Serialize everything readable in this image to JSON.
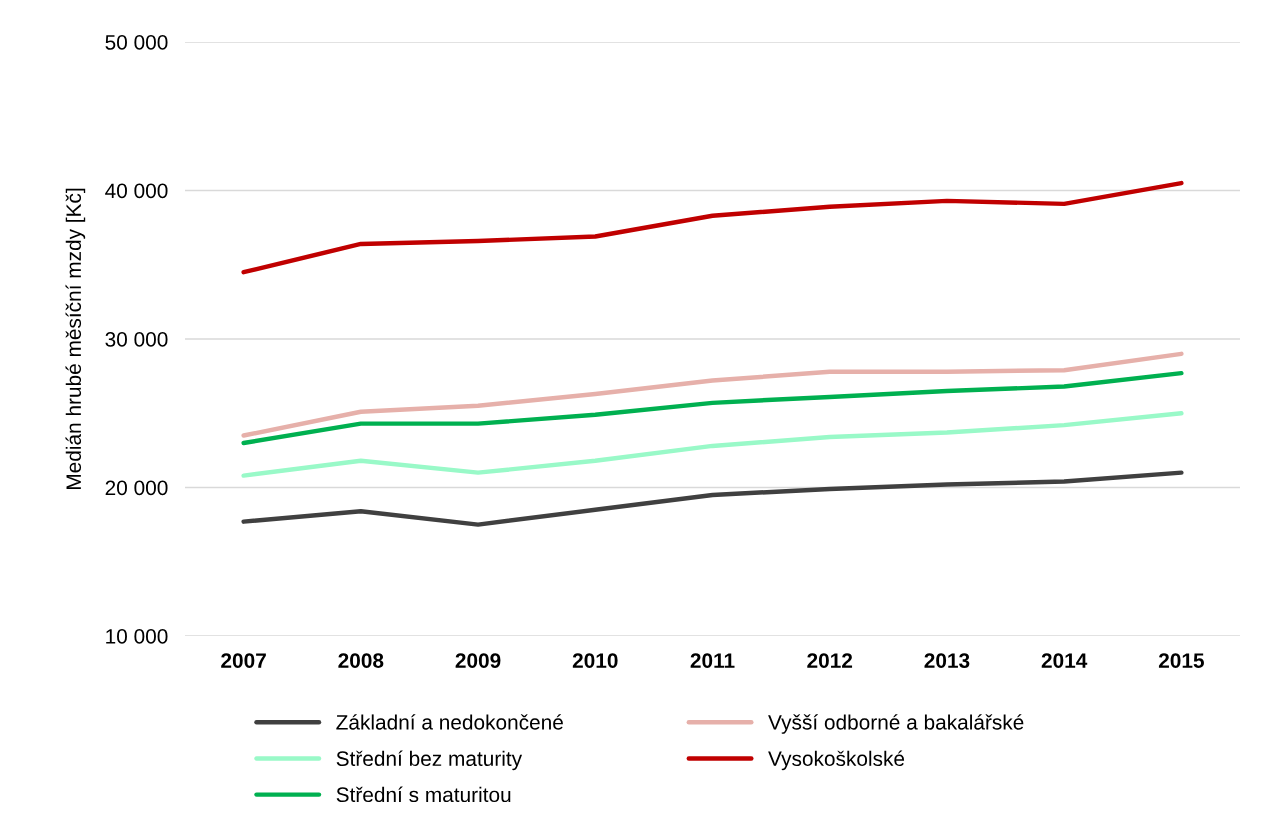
{
  "chart_data": {
    "type": "line",
    "ylabel": "Medián hrubé měsíční mzdy [Kč]",
    "categories": [
      "2007",
      "2008",
      "2009",
      "2010",
      "2011",
      "2012",
      "2013",
      "2014",
      "2015"
    ],
    "series": [
      {
        "name": "Základní a nedokončené",
        "color": "#404040",
        "values": [
          17700,
          18400,
          17500,
          18500,
          19500,
          19900,
          20200,
          20400,
          21000
        ]
      },
      {
        "name": "Střední bez maturity",
        "color": "#99f9c8",
        "values": [
          20800,
          21800,
          21000,
          21800,
          22800,
          23400,
          23700,
          24200,
          25000
        ]
      },
      {
        "name": "Střední s maturitou",
        "color": "#00b050",
        "values": [
          23000,
          24300,
          24300,
          24900,
          25700,
          26100,
          26500,
          26800,
          27700
        ]
      },
      {
        "name": "Vyšší odborné a bakalářské",
        "color": "#e6b0aa",
        "values": [
          23500,
          25100,
          25500,
          26300,
          27200,
          27800,
          27800,
          27900,
          29000
        ]
      },
      {
        "name": "Vysokoškolské",
        "color": "#c00000",
        "values": [
          34500,
          36400,
          36600,
          36900,
          38300,
          38900,
          39300,
          39100,
          40500
        ]
      }
    ],
    "ylim": [
      10000,
      50000
    ],
    "yticks": [
      {
        "value": 10000,
        "label": "10 000"
      },
      {
        "value": 20000,
        "label": "20 000"
      },
      {
        "value": 30000,
        "label": "30 000"
      },
      {
        "value": 40000,
        "label": "40 000"
      },
      {
        "value": 50000,
        "label": "50 000"
      }
    ],
    "grid": "y",
    "legend": "bottom",
    "marker": "none",
    "line_style": "solid"
  }
}
